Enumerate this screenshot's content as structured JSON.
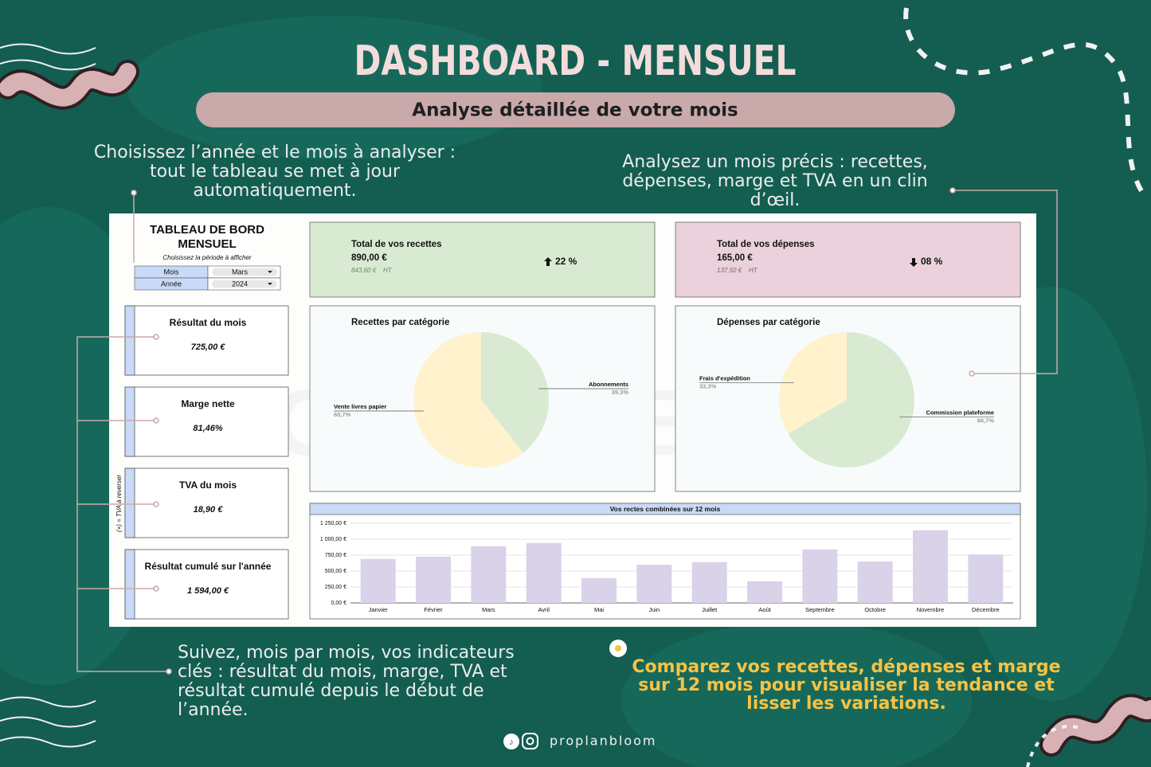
{
  "header": {
    "title": "DASHBOARD - MENSUEL",
    "subtitle": "Analyse détaillée de votre mois"
  },
  "callouts": {
    "top_left": "Choisissez l’année et le mois à analyser : tout le tableau se met à jour automatiquement.",
    "top_right": "Analysez un mois précis : recettes, dépenses, marge et TVA en un clin d’œil.",
    "bottom_left": "Suivez, mois par mois, vos indicateurs clés : résultat du mois, marge, TVA et résultat cumulé depuis le début de l’année.",
    "bottom_right": "Comparez vos recettes, dépenses et marge sur 12 mois pour visualiser la tendance et lisser les variations."
  },
  "footer": {
    "handle": "proplanbloom"
  },
  "dashboard": {
    "watermark": "PROPLANBLOOM",
    "title_lines": [
      "TABLEAU DE BORD",
      "MENSUEL"
    ],
    "period_hint": "Choisissez la période à afficher",
    "selectors": [
      {
        "label": "Mois",
        "value": "Mars"
      },
      {
        "label": "Année",
        "value": "2024"
      }
    ],
    "kpis": [
      {
        "label": "Résultat du mois",
        "value": "725,00 €"
      },
      {
        "label": "Marge nette",
        "value": "81,46%"
      },
      {
        "label": "TVA du mois",
        "value": "18,90 €"
      },
      {
        "label": "Résultat cumulé sur l'année",
        "value": "1 594,00 €"
      }
    ],
    "vat_note": "(+) = TVA à reverser",
    "totals": [
      {
        "label": "Total de vos recettes",
        "amount": "890,00 €",
        "net_amount": "843,60 €",
        "net_label": "HT",
        "change": "22 %"
      },
      {
        "label": "Total de vos dépenses",
        "amount": "165,00 €",
        "net_amount": "137,50 €",
        "net_label": "HT",
        "change": "08 %"
      }
    ]
  },
  "chart_data": [
    {
      "type": "pie",
      "title": "Recettes par catégorie",
      "categories": [
        "Abonnements",
        "Vente livres papier"
      ],
      "values": [
        39.3,
        60.7
      ],
      "value_labels": [
        "39,3%",
        "60,7%"
      ],
      "colors": [
        "#d9ead3",
        "#fff2cc"
      ]
    },
    {
      "type": "pie",
      "title": "Dépenses par catégorie",
      "categories": [
        "Commission plateforme",
        "Frais d'expédition"
      ],
      "values": [
        66.7,
        33.3
      ],
      "value_labels": [
        "66,7%",
        "33,3%"
      ],
      "colors": [
        "#d9ead3",
        "#fff2cc"
      ]
    },
    {
      "type": "bar",
      "title": "Vos rectes combinées sur 12 mois",
      "categories": [
        "Janvier",
        "Février",
        "Mars",
        "Avril",
        "Mai",
        "Juin",
        "Juillet",
        "Août",
        "Septembre",
        "Octobre",
        "Novembre",
        "Décembre"
      ],
      "values": [
        690,
        725,
        890,
        940,
        390,
        600,
        640,
        340,
        840,
        650,
        1140,
        760
      ],
      "color": "#d9d2e9",
      "ylim": [
        0,
        1250
      ],
      "yticks": [
        {
          "value": 0,
          "label": "0,00 €"
        },
        {
          "value": 250,
          "label": "250,00 €"
        },
        {
          "value": 500,
          "label": "500,00 €"
        },
        {
          "value": 750,
          "label": "750,00 €"
        },
        {
          "value": 1000,
          "label": "1 000,00 €"
        },
        {
          "value": 1250,
          "label": "1 250,00 €"
        }
      ],
      "grid": true
    }
  ]
}
